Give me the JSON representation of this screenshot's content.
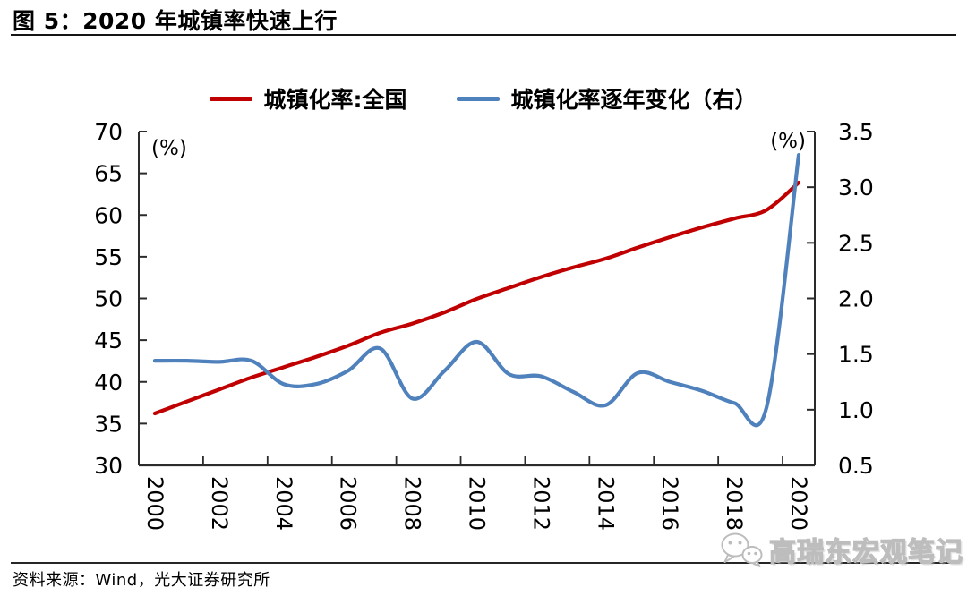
{
  "title": "图 5：2020 年城镇率快速上行",
  "legend": [
    {
      "label": "城镇化率:全国",
      "color": "#c00000"
    },
    {
      "label": "城镇化率逐年变化（右）",
      "color": "#4f81bd"
    }
  ],
  "source": "资料来源：Wind，光大证券研究所",
  "watermark": "高瑞东宏观笔记",
  "chart_data": {
    "type": "line",
    "title": "图 5：2020 年城镇率快速上行",
    "smoothed": true,
    "grid": false,
    "legend_position": "top",
    "x": [
      2000,
      2001,
      2002,
      2003,
      2004,
      2005,
      2006,
      2007,
      2008,
      2009,
      2010,
      2011,
      2012,
      2013,
      2014,
      2015,
      2016,
      2017,
      2018,
      2019,
      2020
    ],
    "x_tick_labels": [
      "2000",
      "2002",
      "2004",
      "2006",
      "2008",
      "2010",
      "2012",
      "2014",
      "2016",
      "2018",
      "2020"
    ],
    "left_axis": {
      "label": "(%)",
      "min": 30,
      "max": 70,
      "step": 5,
      "ticks": [
        30,
        35,
        40,
        45,
        50,
        55,
        60,
        65,
        70
      ]
    },
    "right_axis": {
      "label": "(%)",
      "min": 0.5,
      "max": 3.5,
      "step": 0.5,
      "ticks": [
        0.5,
        1.0,
        1.5,
        2.0,
        2.5,
        3.0,
        3.5
      ]
    },
    "series": [
      {
        "name": "城镇化率:全国",
        "axis": "left",
        "color": "#c00000",
        "values": [
          36.22,
          37.66,
          39.09,
          40.53,
          41.76,
          42.99,
          44.34,
          45.89,
          46.99,
          48.34,
          49.95,
          51.27,
          52.57,
          53.73,
          54.77,
          56.1,
          57.35,
          58.52,
          59.58,
          60.6,
          63.89
        ]
      },
      {
        "name": "城镇化率逐年变化（右）",
        "axis": "right",
        "color": "#4f81bd",
        "values": [
          1.44,
          1.44,
          1.43,
          1.44,
          1.23,
          1.23,
          1.35,
          1.55,
          1.1,
          1.35,
          1.61,
          1.32,
          1.3,
          1.16,
          1.04,
          1.33,
          1.25,
          1.17,
          1.06,
          1.02,
          3.29
        ]
      }
    ]
  }
}
